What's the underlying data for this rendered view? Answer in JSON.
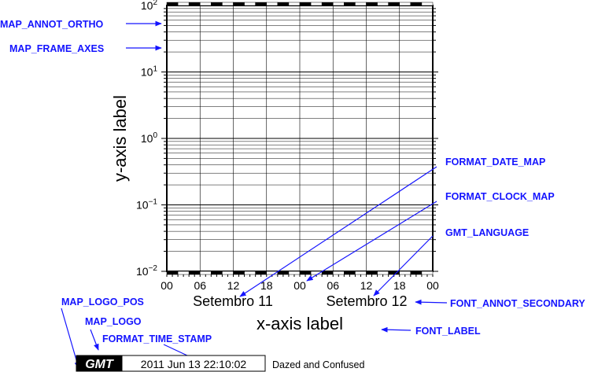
{
  "plot": {
    "x_ticks": [
      "00",
      "06",
      "12",
      "18",
      "00",
      "06",
      "12",
      "18",
      "00"
    ],
    "y_ticks": [
      {
        "base": "10",
        "exp": "2"
      },
      {
        "base": "10",
        "exp": "1"
      },
      {
        "base": "10",
        "exp": "0"
      },
      {
        "base": "10",
        "exp": "−1"
      },
      {
        "base": "10",
        "exp": "−2"
      }
    ],
    "secondary": [
      "Setembro 11",
      "Setembro 12"
    ],
    "x_label": "x-axis label",
    "y_label": "y-axis label"
  },
  "annotations": [
    "MAP_ANNOT_ORTHO",
    "MAP_FRAME_AXES",
    "FORMAT_DATE_MAP",
    "FORMAT_CLOCK_MAP",
    "GMT_LANGUAGE",
    "FONT_ANNOT_SECONDARY",
    "FONT_LABEL",
    "MAP_LOGO_POS",
    "MAP_LOGO",
    "FORMAT_TIME_STAMP"
  ],
  "logo": {
    "text": "GMT",
    "timestamp": "2011 Jun 13 22:10:02",
    "label": "Dazed and Confused"
  }
}
